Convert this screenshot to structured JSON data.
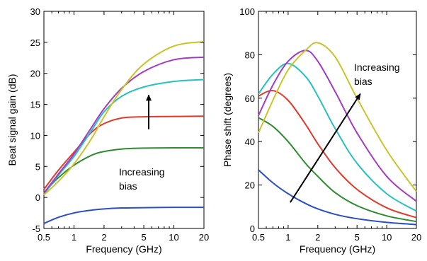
{
  "chart_data": [
    {
      "type": "line",
      "x_scale": "log",
      "xlabel": "Frequency (GHz)",
      "ylabel": "Beat signal gain (dB)",
      "xlim": [
        0.5,
        20
      ],
      "ylim": [
        -5,
        30
      ],
      "xticks": [
        0.5,
        1,
        2,
        5,
        10,
        20
      ],
      "xtick_labels": [
        "0.5",
        "1",
        "2",
        "5",
        "10",
        "20"
      ],
      "yticks": [
        -5,
        0,
        5,
        10,
        15,
        20,
        25,
        30
      ],
      "ytick_labels": [
        "-5",
        "0",
        "5",
        "10",
        "15",
        "20",
        "25",
        "30"
      ],
      "annotation": {
        "lines": [
          "Increasing",
          "bias"
        ],
        "arrow_from": [
          5.6,
          11
        ],
        "arrow_to": [
          5.6,
          16.5
        ]
      },
      "series": [
        {
          "color": "#2b4fc4",
          "x": [
            0.5,
            0.7,
            1,
            1.5,
            2,
            3,
            5,
            10,
            20
          ],
          "y": [
            -4.2,
            -3.2,
            -2.5,
            -2.05,
            -1.85,
            -1.7,
            -1.65,
            -1.6,
            -1.6
          ]
        },
        {
          "color": "#2e8b2e",
          "x": [
            0.5,
            0.7,
            1,
            1.5,
            2,
            3,
            5,
            10,
            20
          ],
          "y": [
            0.8,
            3.2,
            5.2,
            6.8,
            7.4,
            7.8,
            7.95,
            8.0,
            8.0
          ]
        },
        {
          "color": "#e03a2c",
          "x": [
            0.5,
            0.7,
            1,
            1.5,
            2,
            3,
            5,
            10,
            20
          ],
          "y": [
            1.3,
            4.4,
            7.3,
            10.5,
            11.9,
            12.8,
            13.0,
            13.05,
            13.1
          ]
        },
        {
          "color": "#28c0c0",
          "x": [
            0.5,
            0.7,
            1,
            1.5,
            2,
            3,
            5,
            10,
            20
          ],
          "y": [
            0.5,
            3.6,
            6.6,
            10.8,
            13.8,
            16.3,
            17.8,
            18.7,
            19.0
          ]
        },
        {
          "color": "#a23cc2",
          "x": [
            0.5,
            0.7,
            1,
            1.5,
            2,
            3,
            5,
            10,
            20
          ],
          "y": [
            0.7,
            3.8,
            7.0,
            11.3,
            14.3,
            17.6,
            20.3,
            22.2,
            22.6
          ]
        },
        {
          "color": "#c9c42c",
          "x": [
            0.5,
            0.7,
            1,
            1.5,
            2,
            3,
            5,
            10,
            20
          ],
          "y": [
            0.4,
            2.6,
            5.4,
            9.5,
            13.0,
            17.4,
            21.5,
            24.4,
            25.1
          ]
        }
      ]
    },
    {
      "type": "line",
      "x_scale": "log",
      "xlabel": "Frequency (GHz)",
      "ylabel": "Phase shift (degrees)",
      "xlim": [
        0.5,
        20
      ],
      "ylim": [
        0,
        100
      ],
      "xticks": [
        0.5,
        1,
        2,
        5,
        10,
        20
      ],
      "xtick_labels": [
        "0.5",
        "1",
        "2",
        "5",
        "10",
        "20"
      ],
      "yticks": [
        0,
        20,
        40,
        60,
        80,
        100
      ],
      "ytick_labels": [
        "0",
        "20",
        "40",
        "60",
        "80",
        "100"
      ],
      "annotation": {
        "lines": [
          "Increasing",
          "bias"
        ],
        "arrow_from": [
          1.05,
          12
        ],
        "arrow_to": [
          5.4,
          62
        ]
      },
      "series": [
        {
          "color": "#2b4fc4",
          "x": [
            0.5,
            0.7,
            1,
            1.5,
            2,
            3,
            5,
            10,
            20
          ],
          "y": [
            27,
            21,
            16,
            11.5,
            9,
            6.5,
            4.5,
            2.8,
            1.8
          ]
        },
        {
          "color": "#2e8b2e",
          "x": [
            0.5,
            0.7,
            1,
            1.5,
            2,
            3,
            5,
            10,
            20
          ],
          "y": [
            51,
            47,
            40,
            30,
            24,
            16.5,
            10.5,
            5.8,
            3.2
          ]
        },
        {
          "color": "#e03a2c",
          "x": [
            0.5,
            0.7,
            1,
            1.5,
            2,
            3,
            5,
            10,
            20
          ],
          "y": [
            61,
            63.5,
            59,
            48,
            39,
            28,
            18,
            9.5,
            5
          ]
        },
        {
          "color": "#28c0c0",
          "x": [
            0.5,
            0.7,
            1,
            1.5,
            2,
            3,
            5,
            10,
            20
          ],
          "y": [
            62,
            71,
            76,
            70,
            61,
            46,
            30,
            16,
            8
          ]
        },
        {
          "color": "#a23cc2",
          "x": [
            0.5,
            0.7,
            1,
            1.5,
            2,
            3,
            5,
            10,
            20
          ],
          "y": [
            52,
            66,
            77,
            82,
            77,
            63,
            44,
            24,
            12.5
          ]
        },
        {
          "color": "#c9c42c",
          "x": [
            0.5,
            0.7,
            1,
            1.5,
            2,
            3,
            5,
            10,
            20
          ],
          "y": [
            44,
            59,
            73,
            82,
            85.5,
            79,
            60,
            36,
            17
          ]
        }
      ]
    }
  ]
}
